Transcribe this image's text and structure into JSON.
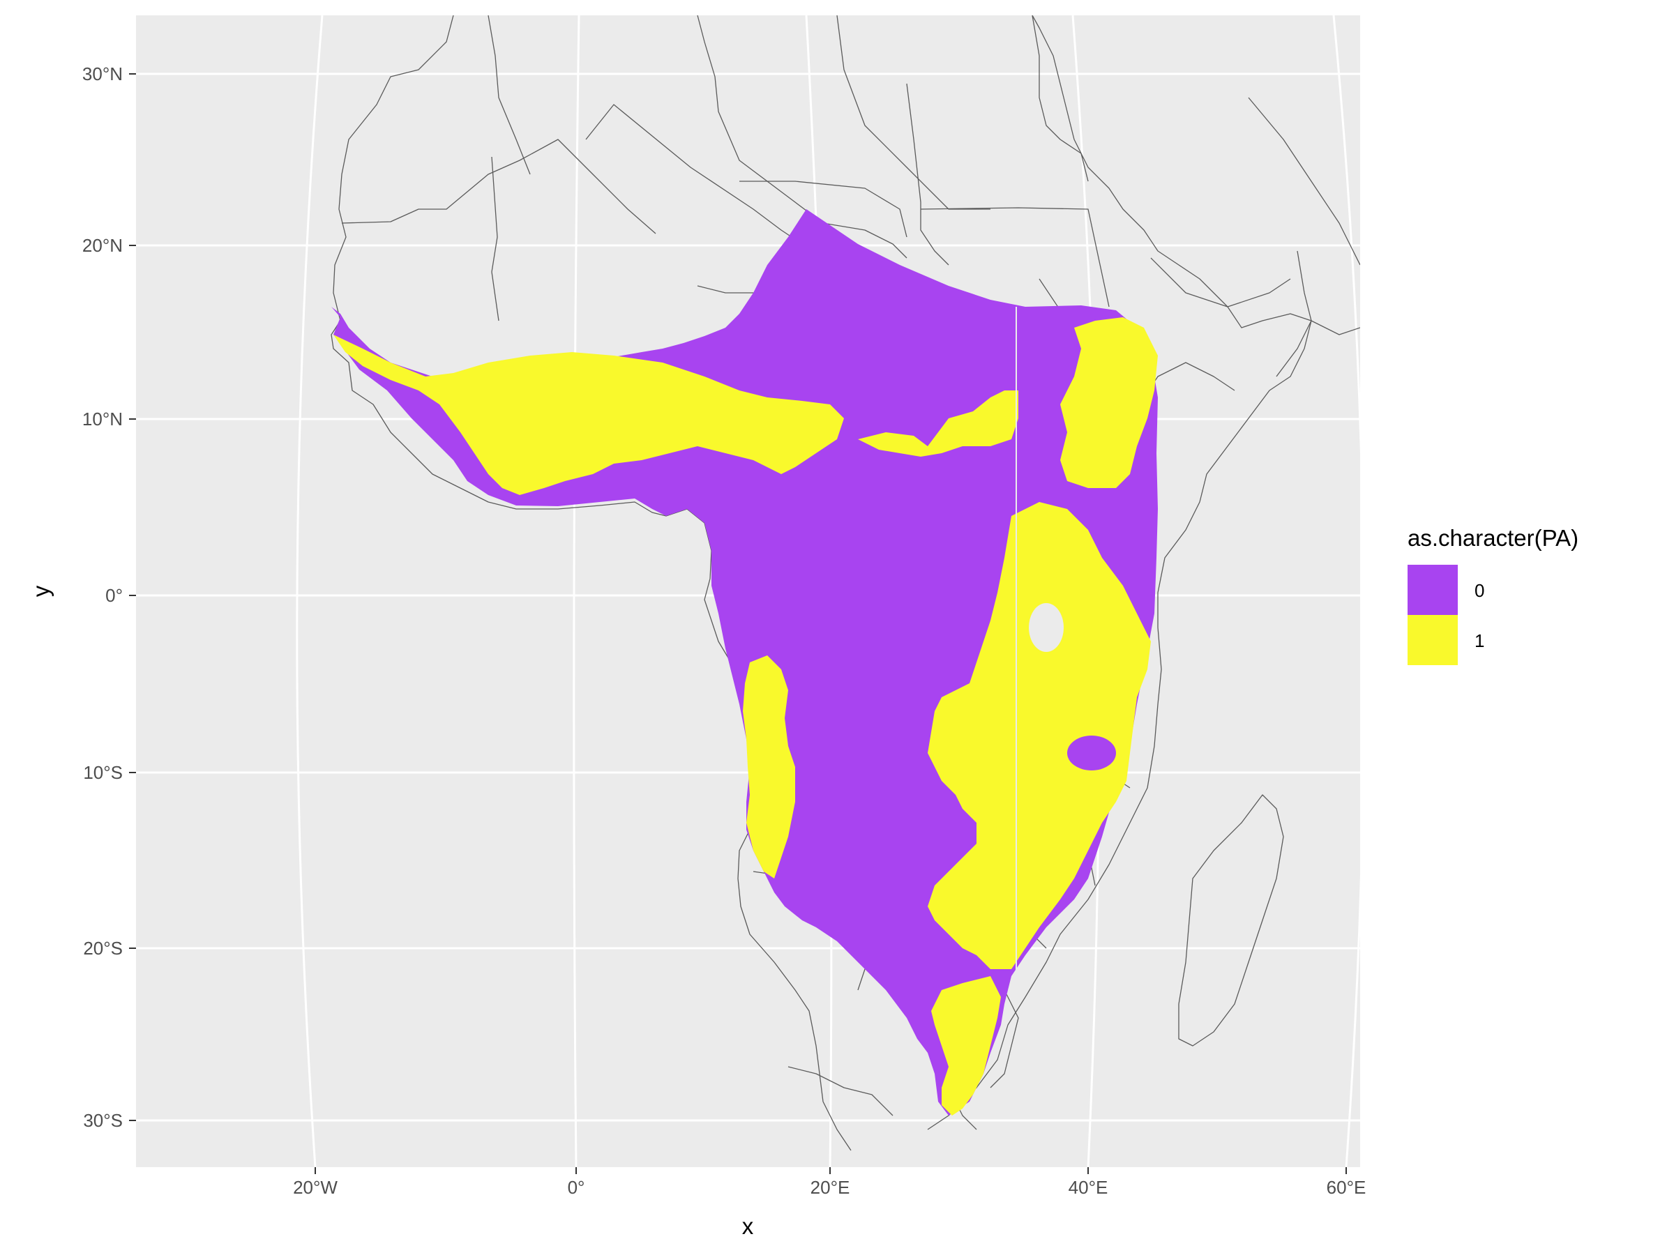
{
  "chart_data": {
    "type": "map",
    "title": "",
    "xlabel": "x",
    "ylabel": "y",
    "x_ticks": [
      "20°W",
      "0°",
      "20°E",
      "40°E",
      "60°E"
    ],
    "y_ticks": [
      "30°N",
      "20°N",
      "10°N",
      "0°",
      "10°S",
      "20°S",
      "30°S"
    ],
    "xlim": [
      -34,
      61
    ],
    "ylim": [
      -33,
      33
    ],
    "legend": {
      "title": "as.character(PA)",
      "placement": "right",
      "items": [
        {
          "label": "0",
          "color": "#a844f0"
        },
        {
          "label": "1",
          "color": "#f9f92c"
        }
      ]
    },
    "panel_background": "#ebebeb",
    "grid": true,
    "basemap": "world country borders",
    "raster_extent": {
      "lon": [
        -18,
        45
      ],
      "lat": [
        -30,
        22
      ]
    }
  }
}
